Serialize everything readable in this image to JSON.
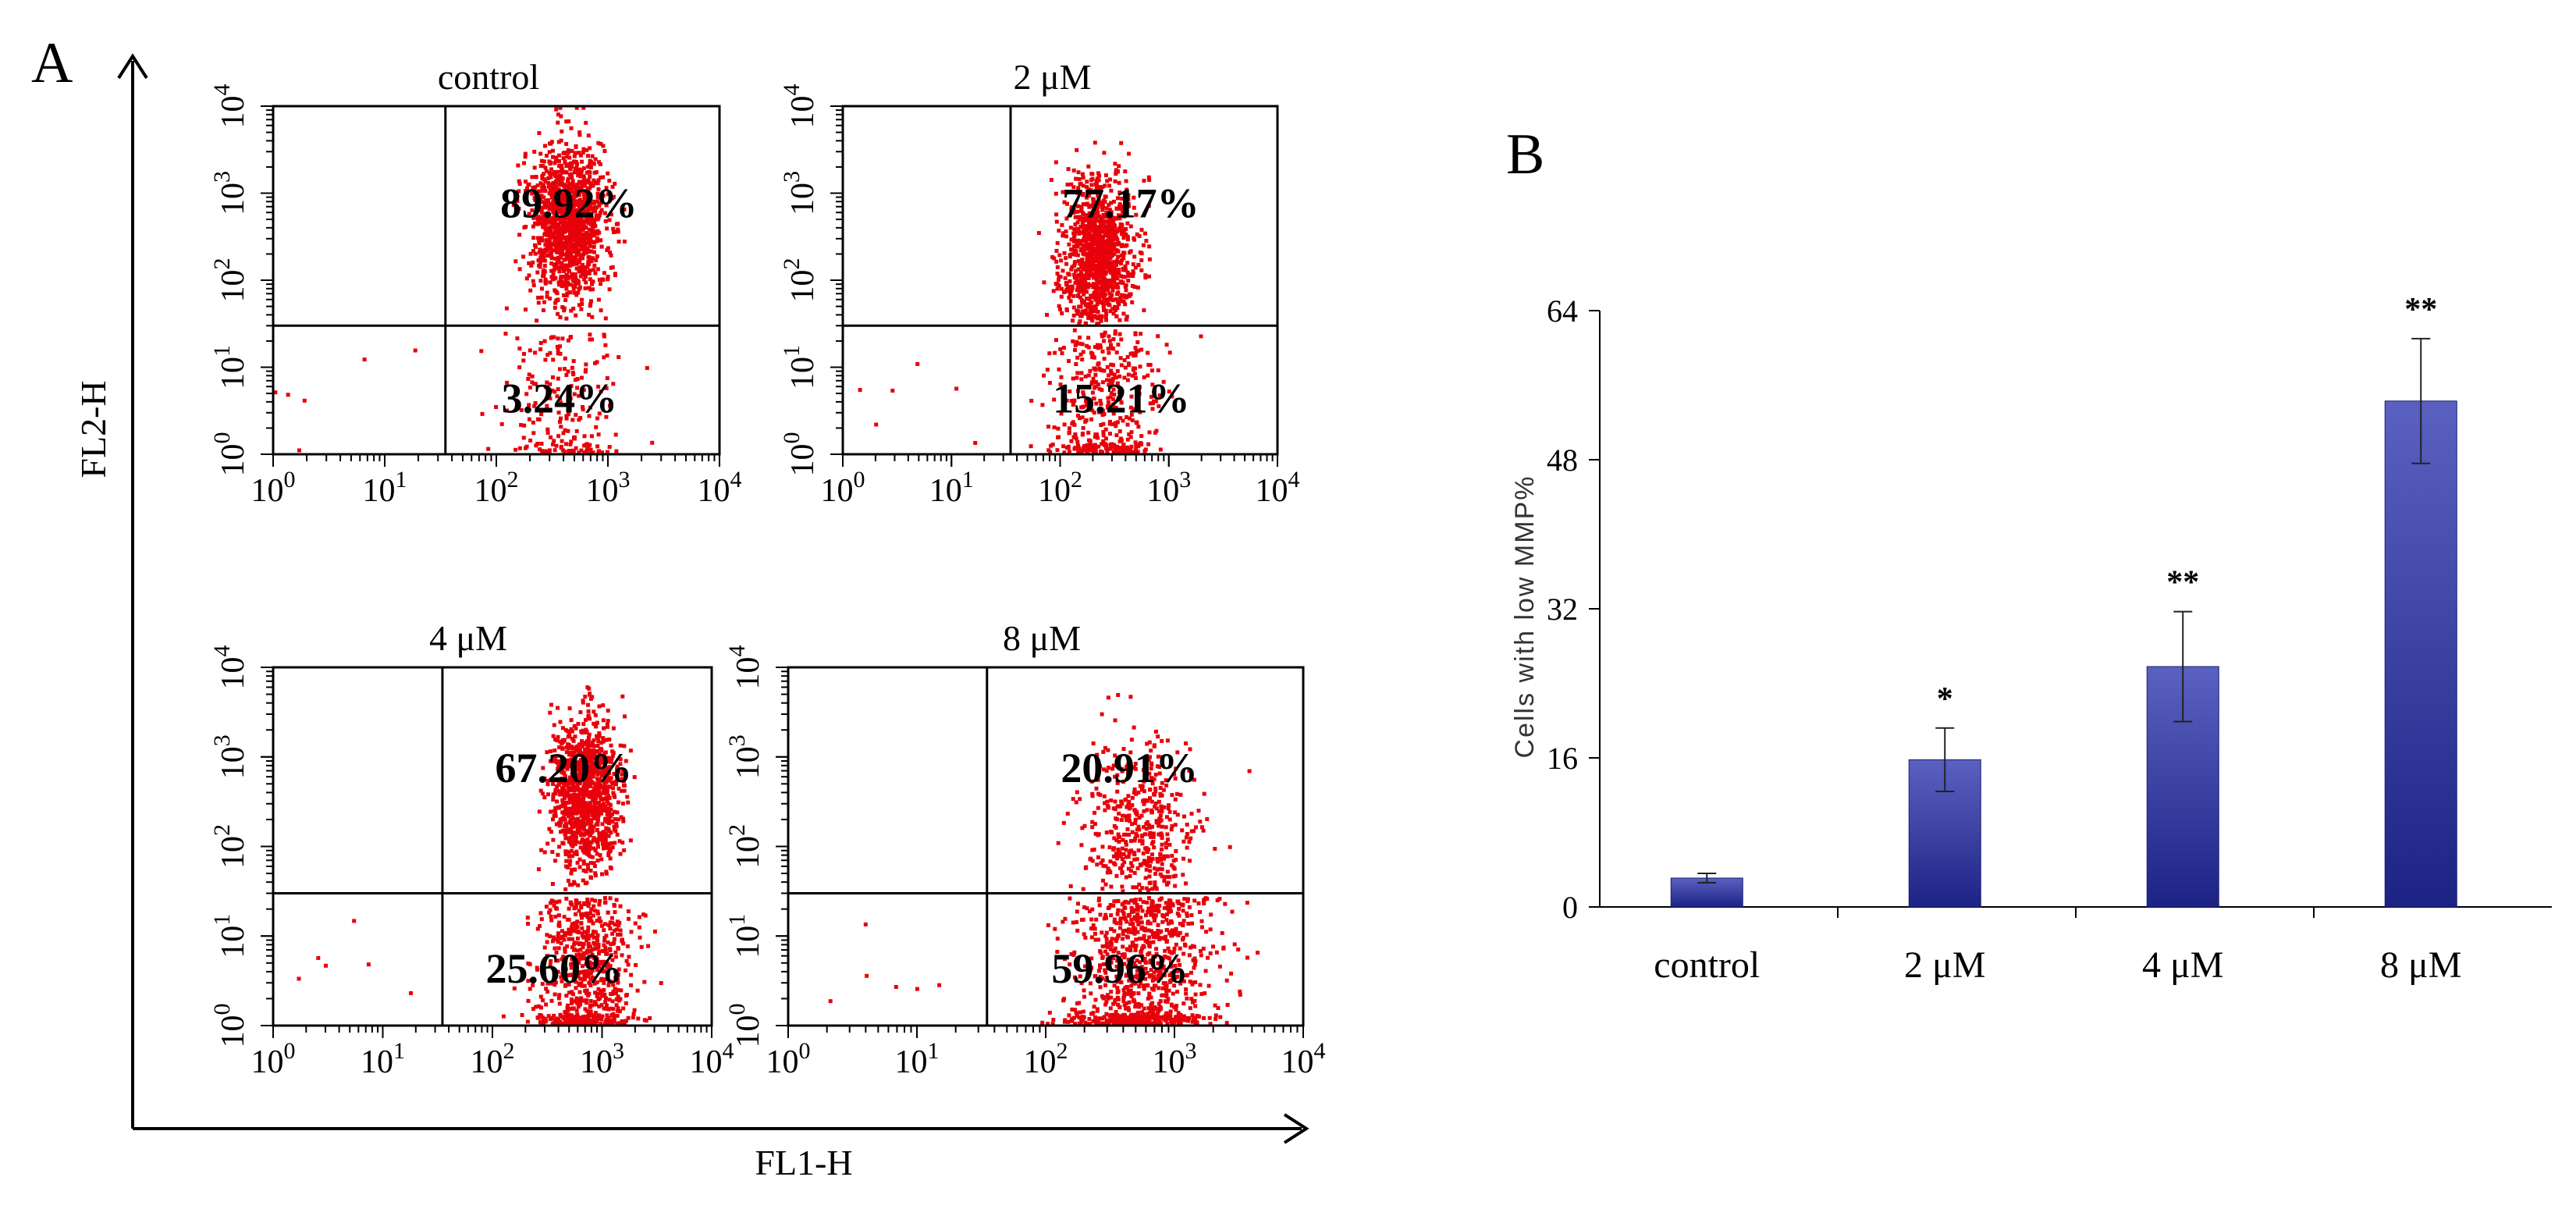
{
  "panel_labels": {
    "a": "A",
    "b": "B"
  },
  "panel_a": {
    "ylabel": "FL2-H",
    "xlabel": "FL1-H",
    "tick_base": "10",
    "tick_exponents": [
      "0",
      "1",
      "2",
      "3",
      "4"
    ],
    "colors": {
      "dots": "#e8000a",
      "frame": "#000000"
    }
  },
  "chart_data": [
    {
      "type": "scatter",
      "panel": "A",
      "xlabel": "FL1-H",
      "ylabel": "FL2-H",
      "x_scale": "log",
      "y_scale": "log",
      "xlim": [
        1,
        10000
      ],
      "ylim": [
        1,
        10000
      ],
      "plots": [
        {
          "title": "control",
          "upper_right": "89.92%",
          "lower_right": "3.24%",
          "upper_right_value": 89.92,
          "lower_right_value": 3.24,
          "gate_x": 35,
          "gate_y": 30
        },
        {
          "title": "2 μM",
          "upper_right": "77.17%",
          "lower_right": "15.21%",
          "upper_right_value": 77.17,
          "lower_right_value": 15.21,
          "gate_x": 35,
          "gate_y": 30
        },
        {
          "title": "4 μM",
          "upper_right": "67.20%",
          "lower_right": "25.60%",
          "upper_right_value": 67.2,
          "lower_right_value": 25.6,
          "gate_x": 35,
          "gate_y": 30
        },
        {
          "title": "8 μM",
          "upper_right": "20.91%",
          "lower_right": "59.96%",
          "upper_right_value": 20.91,
          "lower_right_value": 59.96,
          "gate_x": 35,
          "gate_y": 30
        }
      ]
    },
    {
      "type": "bar",
      "panel": "B",
      "categories": [
        "control",
        "2 μM",
        "4 μM",
        "8 μM"
      ],
      "values": [
        3.1,
        15.8,
        25.8,
        54.3
      ],
      "errors": [
        0.5,
        3.4,
        5.9,
        6.7
      ],
      "significance": [
        "",
        "*",
        "**",
        "**"
      ],
      "ylabel": "Cells with low MMP%",
      "yticks": [
        0,
        16,
        32,
        48,
        64
      ],
      "ylim": [
        0,
        64
      ],
      "colors": {
        "bar_top": "#5a61c0",
        "bar_bottom": "#1c2385",
        "axis": "#000000"
      }
    }
  ]
}
